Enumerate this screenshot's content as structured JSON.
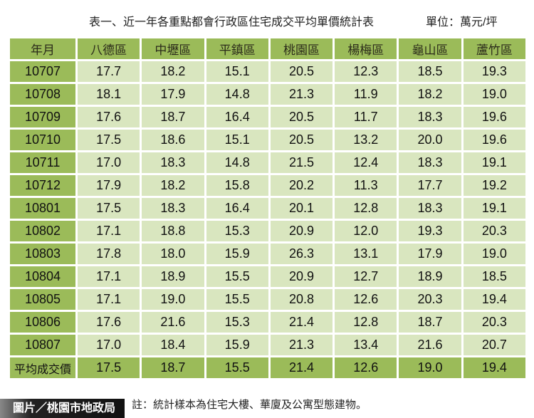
{
  "title": "表一、近一年各重點都會行政區住宅成交平均單價統計表",
  "unit": "單位：萬元/坪",
  "columns": [
    "年月",
    "八德區",
    "中壢區",
    "平鎮區",
    "桃園區",
    "楊梅區",
    "龜山區",
    "蘆竹區"
  ],
  "rows": [
    [
      "10707",
      "17.7",
      "18.2",
      "15.1",
      "20.5",
      "12.3",
      "18.5",
      "19.3"
    ],
    [
      "10708",
      "18.1",
      "17.9",
      "14.8",
      "21.3",
      "11.9",
      "18.2",
      "19.0"
    ],
    [
      "10709",
      "17.6",
      "18.7",
      "16.4",
      "20.5",
      "11.7",
      "18.3",
      "19.6"
    ],
    [
      "10710",
      "17.5",
      "18.6",
      "15.1",
      "20.5",
      "13.2",
      "20.0",
      "19.6"
    ],
    [
      "10711",
      "17.0",
      "18.3",
      "14.8",
      "21.5",
      "12.4",
      "18.3",
      "19.1"
    ],
    [
      "10712",
      "17.9",
      "18.2",
      "15.8",
      "20.2",
      "11.3",
      "17.7",
      "19.2"
    ],
    [
      "10801",
      "17.5",
      "18.3",
      "16.4",
      "20.1",
      "12.8",
      "18.3",
      "19.1"
    ],
    [
      "10802",
      "17.1",
      "18.8",
      "15.3",
      "20.9",
      "12.0",
      "19.3",
      "20.3"
    ],
    [
      "10803",
      "17.8",
      "18.0",
      "15.9",
      "26.3",
      "13.1",
      "17.9",
      "19.0"
    ],
    [
      "10804",
      "17.1",
      "18.9",
      "15.5",
      "20.9",
      "12.7",
      "18.9",
      "18.5"
    ],
    [
      "10805",
      "17.1",
      "19.0",
      "15.5",
      "20.8",
      "12.6",
      "20.3",
      "19.4"
    ],
    [
      "10806",
      "17.6",
      "21.6",
      "15.3",
      "21.4",
      "12.8",
      "18.7",
      "20.3"
    ],
    [
      "10807",
      "17.0",
      "18.4",
      "15.9",
      "21.3",
      "13.4",
      "21.6",
      "20.7"
    ]
  ],
  "average": [
    "平均成交價",
    "17.5",
    "18.7",
    "15.5",
    "21.4",
    "12.6",
    "19.0",
    "19.4"
  ],
  "note": "註：統計樣本為住宅大樓、華廈及公寓型態建物。",
  "credit": "圖片／桃園市地政局"
}
